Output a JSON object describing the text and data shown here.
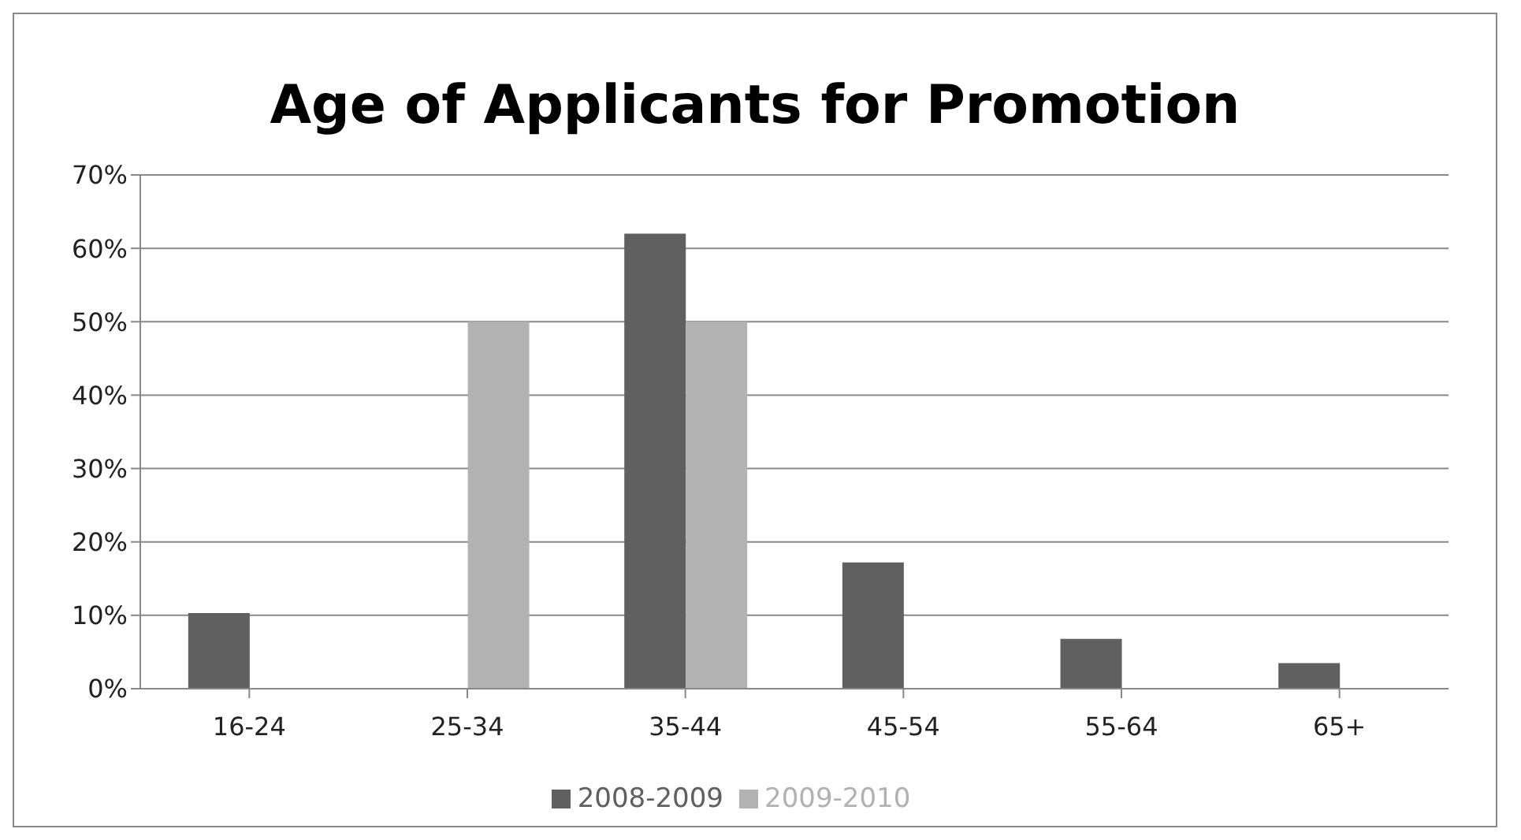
{
  "chart_data": {
    "type": "bar",
    "title": "Age of Applicants for Promotion",
    "categories": [
      "16-24",
      "25-34",
      "35-44",
      "45-54",
      "55-64",
      "65+"
    ],
    "series": [
      {
        "name": "2008-2009",
        "color": "#606060",
        "values": [
          10.3,
          null,
          62,
          17.2,
          6.8,
          3.5
        ]
      },
      {
        "name": "2009-2010",
        "color": "#b2b2b2",
        "values": [
          null,
          50,
          50,
          null,
          null,
          null
        ]
      }
    ],
    "ylim": [
      0,
      70
    ],
    "yticks": [
      {
        "value": 0,
        "label": "0%"
      },
      {
        "value": 10,
        "label": "10%"
      },
      {
        "value": 20,
        "label": "20%"
      },
      {
        "value": 30,
        "label": "30%"
      },
      {
        "value": 40,
        "label": "40%"
      },
      {
        "value": 50,
        "label": "50%"
      },
      {
        "value": 60,
        "label": "60%"
      },
      {
        "value": 70,
        "label": "70%"
      }
    ],
    "grid": "y",
    "legend": "bottom"
  }
}
